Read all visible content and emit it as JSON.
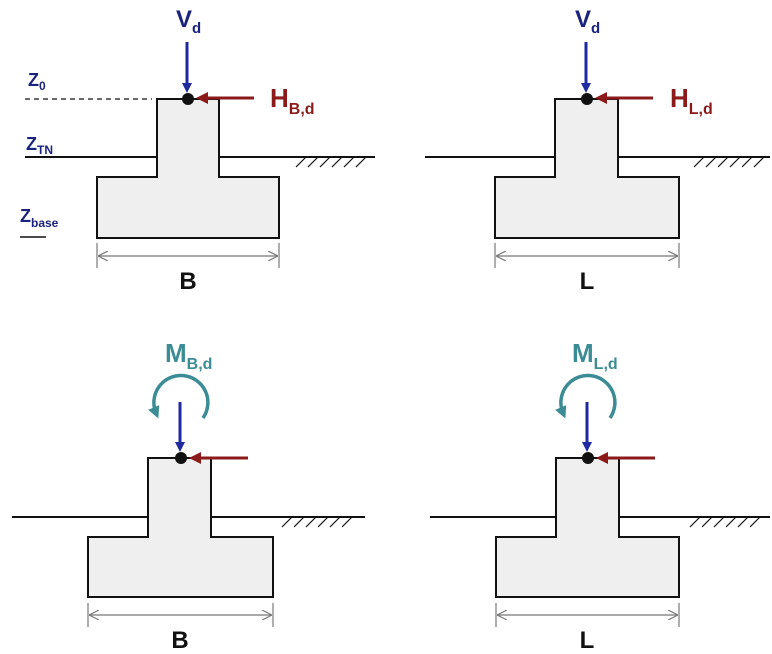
{
  "panels": [
    {
      "id": "top-left",
      "vertical_load": {
        "main": "V",
        "sub": "d"
      },
      "horizontal_load": {
        "main": "H",
        "sub": "B,d"
      },
      "dimension": "B"
    },
    {
      "id": "top-right",
      "vertical_load": {
        "main": "V",
        "sub": "d"
      },
      "horizontal_load": {
        "main": "H",
        "sub": "L,d"
      },
      "dimension": "L"
    },
    {
      "id": "bottom-left",
      "moment": {
        "main": "M",
        "sub": "B,d"
      },
      "dimension": "B"
    },
    {
      "id": "bottom-right",
      "moment": {
        "main": "M",
        "sub": "L,d"
      },
      "dimension": "L"
    }
  ],
  "levels": {
    "z0": {
      "main": "Z",
      "sub": "0"
    },
    "ztn": {
      "main": "Z",
      "sub": "TN"
    },
    "zbase": {
      "main": "Z",
      "sub": "base"
    }
  },
  "colors": {
    "concrete_fill": "#efefef",
    "outline": "#111111",
    "vertical_force": "#1f2aa0",
    "horizontal_force": "#8b1a1a",
    "moment": "#3c8c96",
    "dimension_line": "#777777",
    "level_label": "#1a237e"
  }
}
